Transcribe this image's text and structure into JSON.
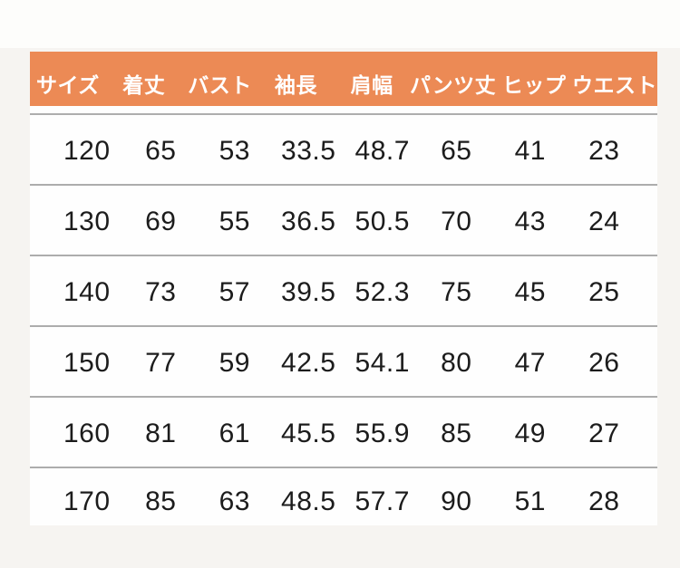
{
  "style": {
    "page_bg_color": "#f6f4f1",
    "top_strip_color": "#fdfdfb",
    "header_bg_color": "#ec8a55",
    "header_text_color": "#ffffff",
    "body_bg_color": "#fefefe",
    "divider_color": "#adadad",
    "text_color": "#1c1c1c"
  },
  "chart_data": {
    "type": "table",
    "title": "",
    "legend": null,
    "columns": [
      "サイズ",
      "着丈",
      "バスト",
      "袖長",
      "肩幅",
      "パンツ丈",
      "ヒップ",
      "ウエスト"
    ],
    "rows": [
      [
        "120",
        "65",
        "53",
        "33.5",
        "48.7",
        "65",
        "41",
        "23"
      ],
      [
        "130",
        "69",
        "55",
        "36.5",
        "50.5",
        "70",
        "43",
        "24"
      ],
      [
        "140",
        "73",
        "57",
        "39.5",
        "52.3",
        "75",
        "45",
        "25"
      ],
      [
        "150",
        "77",
        "59",
        "42.5",
        "54.1",
        "80",
        "47",
        "26"
      ],
      [
        "160",
        "81",
        "61",
        "45.5",
        "55.9",
        "85",
        "49",
        "27"
      ],
      [
        "170",
        "85",
        "63",
        "48.5",
        "57.7",
        "90",
        "51",
        "28"
      ]
    ]
  }
}
